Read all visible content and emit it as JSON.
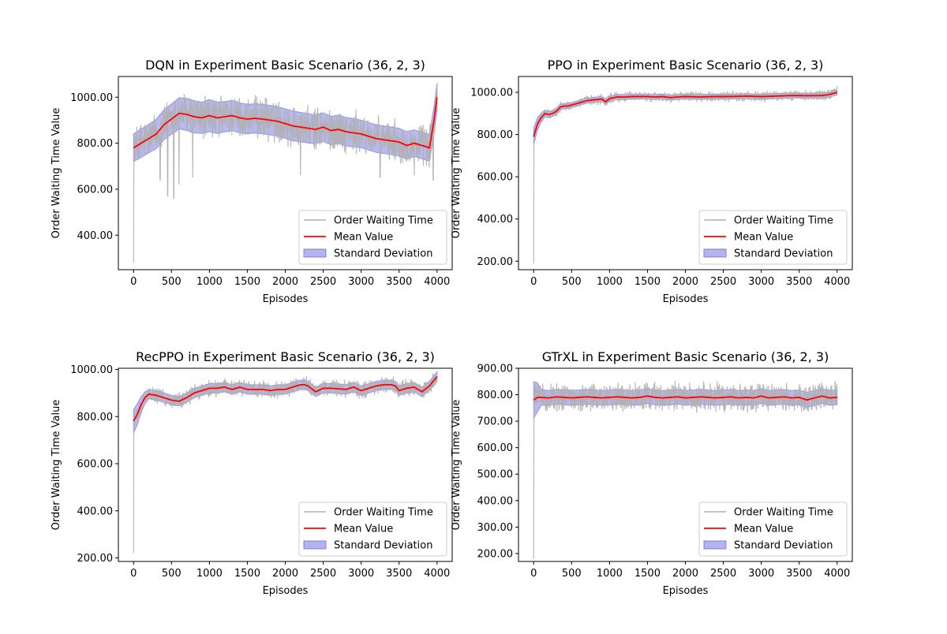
{
  "figure": {
    "background": "#ffffff"
  },
  "colors": {
    "raw": "#b0b0b0",
    "mean": "#ff0000",
    "std_fill": "#8080e6",
    "std_edge": "#6a6ad0"
  },
  "chart_data": [
    {
      "type": "line",
      "title": "DQN in Experiment Basic Scenario (36, 2, 3)",
      "xlabel": "Episodes",
      "ylabel": "Order Waiting Time Value",
      "xlim": [
        -200,
        4200
      ],
      "ylim": [
        250,
        1090
      ],
      "xticks": [
        0,
        500,
        1000,
        1500,
        2000,
        2500,
        3000,
        3500,
        4000
      ],
      "yticks": [
        400,
        600,
        800,
        1000
      ],
      "xtick_labels": [
        "0",
        "500",
        "1000",
        "1500",
        "2000",
        "2500",
        "3000",
        "3500",
        "4000"
      ],
      "ytick_labels": [
        "400.00",
        "600.00",
        "800.00",
        "1000.00"
      ],
      "legend": [
        "Order Waiting Time",
        "Mean Value",
        "Standard Deviation"
      ],
      "legend_loc": "lower-right",
      "raw": {
        "start": 280,
        "level": 850,
        "spread": 75,
        "dips": [
          [
            450,
            570
          ],
          [
            530,
            560
          ],
          [
            600,
            620
          ],
          [
            350,
            640
          ],
          [
            780,
            650
          ],
          [
            2200,
            660
          ],
          [
            3250,
            650
          ],
          [
            3700,
            660
          ],
          [
            3950,
            640
          ]
        ],
        "end": 1060
      },
      "series": [
        {
          "name": "Mean Value",
          "x": [
            0,
            100,
            200,
            300,
            400,
            500,
            600,
            700,
            800,
            900,
            1000,
            1100,
            1200,
            1300,
            1400,
            1500,
            1600,
            1700,
            1800,
            1900,
            2000,
            2100,
            2200,
            2300,
            2400,
            2500,
            2600,
            2700,
            2800,
            2900,
            3000,
            3100,
            3200,
            3300,
            3400,
            3500,
            3600,
            3700,
            3800,
            3900,
            3960,
            4000
          ],
          "y": [
            780,
            800,
            820,
            840,
            880,
            905,
            930,
            925,
            915,
            910,
            920,
            910,
            915,
            920,
            910,
            905,
            908,
            905,
            900,
            895,
            885,
            875,
            870,
            865,
            860,
            870,
            855,
            860,
            850,
            845,
            840,
            830,
            820,
            815,
            810,
            805,
            790,
            800,
            790,
            780,
            900,
            1000
          ],
          "std": [
            60,
            62,
            62,
            64,
            65,
            66,
            68,
            70,
            70,
            68,
            70,
            68,
            66,
            66,
            65,
            64,
            64,
            64,
            64,
            64,
            64,
            65,
            64,
            64,
            62,
            62,
            62,
            62,
            62,
            62,
            60,
            60,
            60,
            60,
            60,
            60,
            60,
            58,
            58,
            58,
            60,
            60
          ]
        }
      ]
    },
    {
      "type": "line",
      "title": "PPO in Experiment Basic Scenario (36, 2, 3)",
      "xlabel": "Episodes",
      "ylabel": "Order Waiting Time Value",
      "xlim": [
        -200,
        4200
      ],
      "ylim": [
        160,
        1075
      ],
      "xticks": [
        0,
        500,
        1000,
        1500,
        2000,
        2500,
        3000,
        3500,
        4000
      ],
      "yticks": [
        200,
        400,
        600,
        800,
        1000
      ],
      "xtick_labels": [
        "0",
        "500",
        "1000",
        "1500",
        "2000",
        "2500",
        "3000",
        "3500",
        "4000"
      ],
      "ytick_labels": [
        "200.00",
        "400.00",
        "600.00",
        "800.00",
        "1000.00"
      ],
      "legend": [
        "Order Waiting Time",
        "Mean Value",
        "Standard Deviation"
      ],
      "legend_loc": "lower-right",
      "raw": {
        "start": 190,
        "level": 980,
        "spread": 20,
        "dips": [],
        "end": 1030
      },
      "series": [
        {
          "name": "Mean Value",
          "x": [
            0,
            50,
            100,
            150,
            200,
            250,
            300,
            350,
            400,
            450,
            500,
            600,
            700,
            800,
            900,
            950,
            1000,
            1100,
            1200,
            1300,
            1400,
            1500,
            1600,
            1700,
            1800,
            1900,
            2000,
            2200,
            2400,
            2600,
            2800,
            3000,
            3200,
            3400,
            3600,
            3800,
            3900,
            4000
          ],
          "y": [
            790,
            850,
            880,
            900,
            895,
            900,
            910,
            930,
            935,
            935,
            940,
            950,
            960,
            965,
            968,
            955,
            970,
            978,
            978,
            980,
            980,
            980,
            978,
            980,
            975,
            978,
            980,
            978,
            980,
            980,
            982,
            980,
            982,
            985,
            984,
            985,
            990,
            1000
          ],
          "std": [
            40,
            30,
            20,
            16,
            14,
            14,
            14,
            14,
            12,
            12,
            12,
            12,
            12,
            12,
            12,
            12,
            12,
            12,
            12,
            12,
            12,
            12,
            12,
            12,
            12,
            12,
            12,
            12,
            12,
            12,
            12,
            12,
            12,
            12,
            12,
            12,
            12,
            12
          ]
        }
      ]
    },
    {
      "type": "line",
      "title": "RecPPO in Experiment Basic Scenario (36, 2, 3)",
      "xlabel": "Episodes",
      "ylabel": "Order Waiting Time Value",
      "xlim": [
        -200,
        4200
      ],
      "ylim": [
        185,
        1005
      ],
      "xticks": [
        0,
        500,
        1000,
        1500,
        2000,
        2500,
        3000,
        3500,
        4000
      ],
      "yticks": [
        200,
        400,
        600,
        800,
        1000
      ],
      "xtick_labels": [
        "0",
        "500",
        "1000",
        "1500",
        "2000",
        "2500",
        "3000",
        "3500",
        "4000"
      ],
      "ytick_labels": [
        "200.00",
        "400.00",
        "600.00",
        "800.00",
        "1000.00"
      ],
      "legend": [
        "Order Waiting Time",
        "Mean Value",
        "Standard Deviation"
      ],
      "legend_loc": "lower-right",
      "raw": {
        "start": 220,
        "level": 910,
        "spread": 30,
        "dips": [],
        "end": 990
      },
      "series": [
        {
          "name": "Mean Value",
          "x": [
            0,
            50,
            100,
            150,
            200,
            300,
            400,
            500,
            600,
            700,
            800,
            900,
            1000,
            1100,
            1200,
            1300,
            1400,
            1500,
            1600,
            1700,
            1800,
            1900,
            2000,
            2100,
            2200,
            2250,
            2300,
            2400,
            2500,
            2600,
            2700,
            2800,
            2900,
            3000,
            3100,
            3200,
            3300,
            3400,
            3450,
            3500,
            3600,
            3700,
            3800,
            3900,
            4000
          ],
          "y": [
            780,
            810,
            850,
            880,
            895,
            890,
            880,
            870,
            865,
            880,
            900,
            910,
            920,
            920,
            925,
            915,
            925,
            915,
            915,
            915,
            910,
            915,
            915,
            925,
            935,
            935,
            930,
            905,
            920,
            920,
            918,
            915,
            925,
            910,
            920,
            930,
            935,
            935,
            930,
            910,
            920,
            925,
            905,
            930,
            970
          ],
          "std": [
            50,
            45,
            35,
            25,
            20,
            20,
            20,
            20,
            20,
            20,
            20,
            20,
            20,
            20,
            20,
            20,
            20,
            20,
            20,
            20,
            20,
            20,
            20,
            20,
            20,
            20,
            20,
            20,
            20,
            20,
            20,
            20,
            20,
            20,
            20,
            20,
            20,
            20,
            20,
            20,
            20,
            20,
            20,
            20,
            20
          ]
        }
      ]
    },
    {
      "type": "line",
      "title": "GTrXL in Experiment Basic Scenario (36, 2, 3)",
      "xlabel": "Episodes",
      "ylabel": "Order Waiting Time Value",
      "xlim": [
        -200,
        4200
      ],
      "ylim": [
        170,
        900
      ],
      "xticks": [
        0,
        500,
        1000,
        1500,
        2000,
        2500,
        3000,
        3500,
        4000
      ],
      "yticks": [
        200,
        300,
        400,
        500,
        600,
        700,
        800,
        900
      ],
      "xtick_labels": [
        "0",
        "500",
        "1000",
        "1500",
        "2000",
        "2500",
        "3000",
        "3500",
        "4000"
      ],
      "ytick_labels": [
        "200.00",
        "300.00",
        "400.00",
        "500.00",
        "600.00",
        "700.00",
        "800.00",
        "900.00"
      ],
      "legend": [
        "Order Waiting Time",
        "Mean Value",
        "Standard Deviation"
      ],
      "legend_loc": "lower-right",
      "raw": {
        "start": 180,
        "level": 790,
        "spread": 45,
        "dips": [],
        "end": 790
      },
      "series": [
        {
          "name": "Mean Value",
          "x": [
            0,
            50,
            100,
            200,
            300,
            400,
            500,
            600,
            700,
            800,
            900,
            1000,
            1100,
            1200,
            1300,
            1400,
            1500,
            1600,
            1700,
            1800,
            1900,
            2000,
            2100,
            2200,
            2300,
            2400,
            2500,
            2600,
            2700,
            2800,
            2900,
            3000,
            3100,
            3200,
            3300,
            3400,
            3500,
            3600,
            3700,
            3800,
            3900,
            4000
          ],
          "y": [
            780,
            790,
            790,
            788,
            792,
            790,
            788,
            790,
            792,
            790,
            788,
            790,
            792,
            790,
            788,
            790,
            795,
            790,
            788,
            790,
            792,
            788,
            790,
            792,
            790,
            788,
            790,
            792,
            788,
            790,
            788,
            795,
            788,
            790,
            792,
            788,
            790,
            780,
            788,
            795,
            788,
            790
          ],
          "std": [
            70,
            55,
            30,
            28,
            28,
            28,
            28,
            28,
            28,
            28,
            28,
            28,
            28,
            28,
            28,
            28,
            28,
            28,
            28,
            28,
            28,
            28,
            28,
            28,
            28,
            28,
            28,
            28,
            28,
            28,
            28,
            28,
            28,
            28,
            28,
            28,
            28,
            28,
            28,
            28,
            28,
            28
          ]
        }
      ]
    }
  ]
}
